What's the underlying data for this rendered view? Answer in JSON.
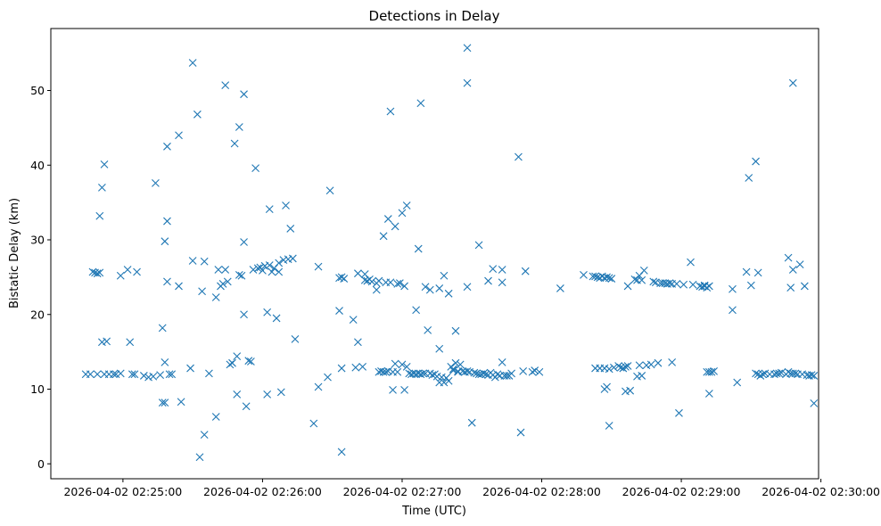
{
  "chart_data": {
    "type": "scatter",
    "title": "Detections in Delay",
    "xlabel": "Time (UTC)",
    "ylabel": "Bistatic Delay (km)",
    "marker": "x",
    "color": "#1f77b4",
    "x_unit": "seconds after 2026-04-02 02:25:00",
    "xlim": [
      -31,
      299
    ],
    "ylim": [
      -2,
      58.3
    ],
    "x_ticks": [
      {
        "value": 0,
        "label": "2026-04-02 02:25:00"
      },
      {
        "value": 60,
        "label": "2026-04-02 02:26:00"
      },
      {
        "value": 120,
        "label": "2026-04-02 02:27:00"
      },
      {
        "value": 180,
        "label": "2026-04-02 02:28:00"
      },
      {
        "value": 240,
        "label": "2026-04-02 02:29:00"
      },
      {
        "value": 300,
        "label": "2026-04-02 02:30:00"
      }
    ],
    "y_ticks": [
      {
        "value": 0,
        "label": "0"
      },
      {
        "value": 10,
        "label": "10"
      },
      {
        "value": 20,
        "label": "20"
      },
      {
        "value": 30,
        "label": "30"
      },
      {
        "value": 40,
        "label": "40"
      },
      {
        "value": 50,
        "label": "50"
      }
    ],
    "points": [
      [
        -16,
        12
      ],
      [
        -14,
        12
      ],
      [
        -13,
        25.7
      ],
      [
        -12,
        25.6
      ],
      [
        -11,
        12
      ],
      [
        -11,
        25.5
      ],
      [
        -10,
        25.6
      ],
      [
        -10,
        33.2
      ],
      [
        -9,
        37
      ],
      [
        -9,
        16.3
      ],
      [
        -8,
        12
      ],
      [
        -8,
        40.1
      ],
      [
        -7,
        16.4
      ],
      [
        -6,
        12
      ],
      [
        -4,
        12
      ],
      [
        -3,
        12
      ],
      [
        -1,
        12.1
      ],
      [
        -1,
        25.2
      ],
      [
        2,
        26
      ],
      [
        3,
        16.3
      ],
      [
        4,
        12
      ],
      [
        5,
        12
      ],
      [
        6,
        25.7
      ],
      [
        9,
        11.8
      ],
      [
        11,
        11.6
      ],
      [
        13,
        11.7
      ],
      [
        14,
        37.6
      ],
      [
        16,
        11.9
      ],
      [
        17,
        18.2
      ],
      [
        17,
        8.2
      ],
      [
        18,
        8.2
      ],
      [
        18,
        29.8
      ],
      [
        18,
        13.6
      ],
      [
        19,
        42.5
      ],
      [
        19,
        32.5
      ],
      [
        19,
        24.4
      ],
      [
        20,
        12
      ],
      [
        21,
        12
      ],
      [
        24,
        23.8
      ],
      [
        24,
        44
      ],
      [
        25,
        8.3
      ],
      [
        29,
        12.8
      ],
      [
        30,
        53.7
      ],
      [
        30,
        27.2
      ],
      [
        32,
        46.8
      ],
      [
        33,
        0.9
      ],
      [
        34,
        23.1
      ],
      [
        35,
        3.9
      ],
      [
        35,
        27.1
      ],
      [
        37,
        12.1
      ],
      [
        40,
        22.3
      ],
      [
        40,
        6.3
      ],
      [
        41,
        26
      ],
      [
        42,
        23.8
      ],
      [
        43,
        24.1
      ],
      [
        44,
        26
      ],
      [
        44,
        50.7
      ],
      [
        45,
        24.4
      ],
      [
        46,
        13.3
      ],
      [
        47,
        13.5
      ],
      [
        48,
        42.9
      ],
      [
        49,
        14.4
      ],
      [
        49,
        9.3
      ],
      [
        50,
        45.1
      ],
      [
        50,
        25.3
      ],
      [
        51,
        25.2
      ],
      [
        52,
        49.5
      ],
      [
        52,
        29.7
      ],
      [
        52,
        20
      ],
      [
        53,
        7.7
      ],
      [
        54,
        13.8
      ],
      [
        55,
        13.7
      ],
      [
        56,
        26
      ],
      [
        57,
        39.6
      ],
      [
        58,
        26.2
      ],
      [
        59,
        26.3
      ],
      [
        60,
        25.9
      ],
      [
        61,
        26.5
      ],
      [
        62,
        9.3
      ],
      [
        62,
        20.3
      ],
      [
        63,
        34.1
      ],
      [
        63,
        26.6
      ],
      [
        64,
        25.7
      ],
      [
        65,
        26.2
      ],
      [
        66,
        19.5
      ],
      [
        67,
        26.9
      ],
      [
        67,
        25.7
      ],
      [
        68,
        9.6
      ],
      [
        69,
        27.3
      ],
      [
        70,
        34.6
      ],
      [
        71,
        27.4
      ],
      [
        72,
        31.5
      ],
      [
        73,
        27.5
      ],
      [
        74,
        16.7
      ],
      [
        82,
        5.4
      ],
      [
        84,
        26.4
      ],
      [
        84,
        10.3
      ],
      [
        88,
        11.6
      ],
      [
        89,
        36.6
      ],
      [
        93,
        24.9
      ],
      [
        93,
        20.5
      ],
      [
        94,
        25
      ],
      [
        94,
        1.6
      ],
      [
        94,
        12.8
      ],
      [
        95,
        24.8
      ],
      [
        99,
        19.3
      ],
      [
        100,
        12.9
      ],
      [
        101,
        25.5
      ],
      [
        101,
        16.3
      ],
      [
        103,
        13
      ],
      [
        104,
        25.4
      ],
      [
        104,
        24.6
      ],
      [
        105,
        24.5
      ],
      [
        106,
        24.7
      ],
      [
        107,
        24.4
      ],
      [
        109,
        23.3
      ],
      [
        109,
        24.2
      ],
      [
        110,
        24.5
      ],
      [
        110,
        12.3
      ],
      [
        111,
        12.4
      ],
      [
        112,
        30.5
      ],
      [
        112,
        12.3
      ],
      [
        113,
        24.3
      ],
      [
        113,
        12.3
      ],
      [
        114,
        32.8
      ],
      [
        114,
        12.4
      ],
      [
        115,
        47.2
      ],
      [
        115,
        24.3
      ],
      [
        116,
        12.3
      ],
      [
        116,
        9.9
      ],
      [
        117,
        31.8
      ],
      [
        117,
        13.4
      ],
      [
        118,
        24.1
      ],
      [
        118,
        12.3
      ],
      [
        119,
        24.2
      ],
      [
        120,
        13.3
      ],
      [
        120,
        33.6
      ],
      [
        121,
        9.9
      ],
      [
        121,
        23.8
      ],
      [
        122,
        34.6
      ],
      [
        122,
        13
      ],
      [
        123,
        12.1
      ],
      [
        124,
        12
      ],
      [
        125,
        12.1
      ],
      [
        126,
        20.6
      ],
      [
        126,
        12
      ],
      [
        127,
        28.8
      ],
      [
        127,
        12.1
      ],
      [
        128,
        48.3
      ],
      [
        128,
        12
      ],
      [
        129,
        12.1
      ],
      [
        130,
        23.7
      ],
      [
        130,
        12.1
      ],
      [
        131,
        17.9
      ],
      [
        132,
        23.3
      ],
      [
        132,
        12.1
      ],
      [
        133,
        11.9
      ],
      [
        134,
        12
      ],
      [
        135,
        11.7
      ],
      [
        136,
        15.4
      ],
      [
        136,
        23.5
      ],
      [
        136,
        10.9
      ],
      [
        137,
        11.6
      ],
      [
        138,
        10.9
      ],
      [
        138,
        25.2
      ],
      [
        139,
        11.5
      ],
      [
        140,
        22.8
      ],
      [
        140,
        11.1
      ],
      [
        141,
        13
      ],
      [
        142,
        12.5
      ],
      [
        142,
        12.7
      ],
      [
        143,
        13.5
      ],
      [
        143,
        17.8
      ],
      [
        144,
        12.3
      ],
      [
        144,
        12.4
      ],
      [
        145,
        13.3
      ],
      [
        146,
        12.4
      ],
      [
        147,
        12.3
      ],
      [
        148,
        12.4
      ],
      [
        148,
        55.7
      ],
      [
        148,
        51
      ],
      [
        148,
        23.7
      ],
      [
        149,
        12.3
      ],
      [
        150,
        5.5
      ],
      [
        151,
        12.2
      ],
      [
        152,
        12.1
      ],
      [
        153,
        29.3
      ],
      [
        153,
        12
      ],
      [
        154,
        12
      ],
      [
        155,
        12.1
      ],
      [
        156,
        12
      ],
      [
        157,
        11.9
      ],
      [
        157,
        24.5
      ],
      [
        158,
        12.2
      ],
      [
        159,
        11.9
      ],
      [
        159,
        26.1
      ],
      [
        160,
        11.6
      ],
      [
        161,
        12
      ],
      [
        162,
        11.8
      ],
      [
        163,
        26
      ],
      [
        163,
        24.3
      ],
      [
        163,
        13.6
      ],
      [
        164,
        11.8
      ],
      [
        165,
        11.8
      ],
      [
        166,
        11.8
      ],
      [
        167,
        12.1
      ],
      [
        170,
        41.1
      ],
      [
        171,
        4.2
      ],
      [
        172,
        12.4
      ],
      [
        173,
        25.8
      ],
      [
        176,
        12.3
      ],
      [
        177,
        12.5
      ],
      [
        179,
        12.3
      ],
      [
        188,
        23.5
      ],
      [
        198,
        25.3
      ],
      [
        202,
        25.1
      ],
      [
        203,
        25.1
      ],
      [
        203,
        12.8
      ],
      [
        204,
        25
      ],
      [
        205,
        24.9
      ],
      [
        205,
        12.8
      ],
      [
        206,
        25.1
      ],
      [
        207,
        24.9
      ],
      [
        207,
        12.8
      ],
      [
        207,
        10
      ],
      [
        208,
        25
      ],
      [
        208,
        10.3
      ],
      [
        209,
        24.9
      ],
      [
        209,
        12.7
      ],
      [
        209,
        5.1
      ],
      [
        210,
        24.8
      ],
      [
        211,
        12.9
      ],
      [
        213,
        13.1
      ],
      [
        214,
        12.9
      ],
      [
        215,
        12.8
      ],
      [
        216,
        9.7
      ],
      [
        216,
        13
      ],
      [
        217,
        13.1
      ],
      [
        217,
        23.8
      ],
      [
        218,
        9.8
      ],
      [
        220,
        24.7
      ],
      [
        221,
        24.6
      ],
      [
        221,
        11.7
      ],
      [
        222,
        13.2
      ],
      [
        222,
        25.2
      ],
      [
        223,
        24.6
      ],
      [
        223,
        11.8
      ],
      [
        224,
        25.9
      ],
      [
        225,
        13.2
      ],
      [
        227,
        13.3
      ],
      [
        228,
        24.4
      ],
      [
        229,
        24.3
      ],
      [
        230,
        13.5
      ],
      [
        231,
        24.2
      ],
      [
        232,
        24.2
      ],
      [
        233,
        24.2
      ],
      [
        234,
        24.1
      ],
      [
        235,
        24.2
      ],
      [
        236,
        24.1
      ],
      [
        236,
        13.6
      ],
      [
        238,
        24.1
      ],
      [
        239,
        6.8
      ],
      [
        241,
        24
      ],
      [
        244,
        27
      ],
      [
        245,
        24
      ],
      [
        248,
        23.8
      ],
      [
        249,
        23.7
      ],
      [
        250,
        23.8
      ],
      [
        250,
        23.9
      ],
      [
        251,
        23.6
      ],
      [
        251,
        12.3
      ],
      [
        252,
        23.8
      ],
      [
        252,
        9.4
      ],
      [
        252,
        12.3
      ],
      [
        253,
        12.3
      ],
      [
        254,
        12.4
      ],
      [
        262,
        23.4
      ],
      [
        262,
        20.6
      ],
      [
        264,
        10.9
      ],
      [
        268,
        25.7
      ],
      [
        269,
        38.3
      ],
      [
        270,
        23.9
      ],
      [
        272,
        40.5
      ],
      [
        272,
        12.1
      ],
      [
        273,
        12
      ],
      [
        273,
        25.6
      ],
      [
        274,
        11.8
      ],
      [
        275,
        12
      ],
      [
        276,
        12.1
      ],
      [
        278,
        12
      ],
      [
        280,
        12
      ],
      [
        281,
        12.1
      ],
      [
        282,
        12.1
      ],
      [
        283,
        12.2
      ],
      [
        285,
        12
      ],
      [
        286,
        12.3
      ],
      [
        286,
        27.6
      ],
      [
        287,
        23.6
      ],
      [
        287,
        12.1
      ],
      [
        288,
        51
      ],
      [
        288,
        12.1
      ],
      [
        288,
        26
      ],
      [
        289,
        12.1
      ],
      [
        290,
        12
      ],
      [
        291,
        26.7
      ],
      [
        292,
        12
      ],
      [
        293,
        23.8
      ],
      [
        294,
        11.9
      ],
      [
        295,
        11.8
      ],
      [
        296,
        11.9
      ],
      [
        297,
        8.1
      ],
      [
        297,
        11.8
      ]
    ]
  }
}
